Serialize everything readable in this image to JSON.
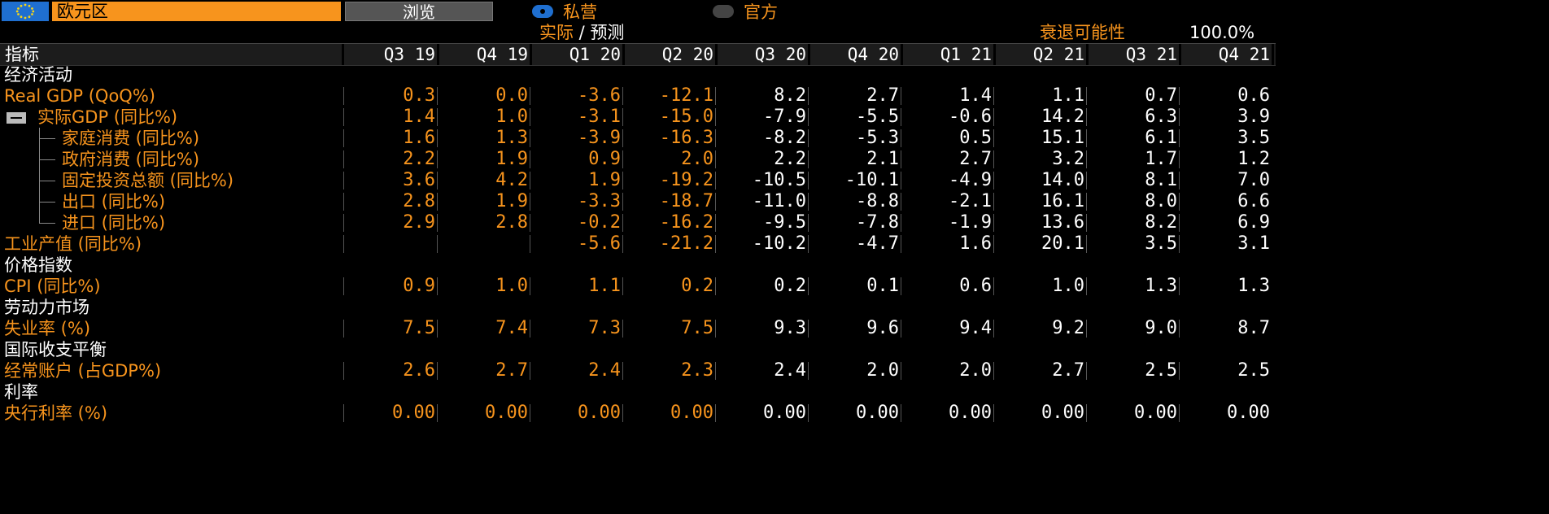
{
  "topbar": {
    "region": "欧元区",
    "browse_label": "浏览",
    "radio_private": "私营",
    "radio_official": "官方",
    "selected": "私营",
    "actual_forecast_a": "实际",
    "actual_forecast_sep": " / ",
    "actual_forecast_b": "预测",
    "recession_label": "衰退可能性",
    "recession_value": "100.0%"
  },
  "table": {
    "header_label": "指标",
    "columns": [
      "Q3 19",
      "Q4 19",
      "Q1 20",
      "Q2 20",
      "Q3 20",
      "Q4 20",
      "Q1 21",
      "Q2 21",
      "Q3 21",
      "Q4 21"
    ],
    "rows": [
      {
        "type": "section",
        "label": "经济活动"
      },
      {
        "type": "data",
        "label": "Real GDP (QoQ%)",
        "values": [
          "0.3",
          "0.0",
          "-3.6",
          "-12.1",
          "8.2",
          "2.7",
          "1.4",
          "1.1",
          "0.7",
          "0.6"
        ]
      },
      {
        "type": "data",
        "label": "实际GDP (同比%)",
        "expander": true,
        "values": [
          "1.4",
          "1.0",
          "-3.1",
          "-15.0",
          "-7.9",
          "-5.5",
          "-0.6",
          "14.2",
          "6.3",
          "3.9"
        ]
      },
      {
        "type": "data",
        "label": "家庭消费 (同比%)",
        "child": true,
        "values": [
          "1.6",
          "1.3",
          "-3.9",
          "-16.3",
          "-8.2",
          "-5.3",
          "0.5",
          "15.1",
          "6.1",
          "3.5"
        ]
      },
      {
        "type": "data",
        "label": "政府消费 (同比%)",
        "child": true,
        "values": [
          "2.2",
          "1.9",
          "0.9",
          "2.0",
          "2.2",
          "2.1",
          "2.7",
          "3.2",
          "1.7",
          "1.2"
        ]
      },
      {
        "type": "data",
        "label": "固定投资总额 (同比%)",
        "child": true,
        "values": [
          "3.6",
          "4.2",
          "1.9",
          "-19.2",
          "-10.5",
          "-10.1",
          "-4.9",
          "14.0",
          "8.1",
          "7.0"
        ]
      },
      {
        "type": "data",
        "label": "出口 (同比%)",
        "child": true,
        "values": [
          "2.8",
          "1.9",
          "-3.3",
          "-18.7",
          "-11.0",
          "-8.8",
          "-2.1",
          "16.1",
          "8.0",
          "6.6"
        ]
      },
      {
        "type": "data",
        "label": "进口 (同比%)",
        "child": true,
        "last_child": true,
        "values": [
          "2.9",
          "2.8",
          "-0.2",
          "-16.2",
          "-9.5",
          "-7.8",
          "-1.9",
          "13.6",
          "8.2",
          "6.9"
        ]
      },
      {
        "type": "data",
        "label": "工业产值 (同比%)",
        "values": [
          "",
          "",
          "-5.6",
          "-21.2",
          "-10.2",
          "-4.7",
          "1.6",
          "20.1",
          "3.5",
          "3.1"
        ]
      },
      {
        "type": "section",
        "label": "价格指数"
      },
      {
        "type": "data",
        "label": "CPI (同比%)",
        "values": [
          "0.9",
          "1.0",
          "1.1",
          "0.2",
          "0.2",
          "0.1",
          "0.6",
          "1.0",
          "1.3",
          "1.3"
        ]
      },
      {
        "type": "section",
        "label": "劳动力市场"
      },
      {
        "type": "data",
        "label": "失业率 (%)",
        "values": [
          "7.5",
          "7.4",
          "7.3",
          "7.5",
          "9.3",
          "9.6",
          "9.4",
          "9.2",
          "9.0",
          "8.7"
        ]
      },
      {
        "type": "section",
        "label": "国际收支平衡"
      },
      {
        "type": "data",
        "label": "经常账户 (占GDP%)",
        "values": [
          "2.6",
          "2.7",
          "2.4",
          "2.3",
          "2.4",
          "2.0",
          "2.0",
          "2.7",
          "2.5",
          "2.5"
        ]
      },
      {
        "type": "section",
        "label": "利率"
      },
      {
        "type": "data",
        "label": "央行利率 (%)",
        "values": [
          "0.00",
          "0.00",
          "0.00",
          "0.00",
          "0.00",
          "0.00",
          "0.00",
          "0.00",
          "0.00",
          "0.00"
        ]
      }
    ]
  },
  "colors": {
    "accent": "#f7941d",
    "actual_values": "#f7941d",
    "forecast_values": "#ffffff",
    "flag_blue": "#1f6fd0"
  },
  "icons": {
    "flag": "eu-flag-icon",
    "expander": "collapse-minus-icon"
  }
}
